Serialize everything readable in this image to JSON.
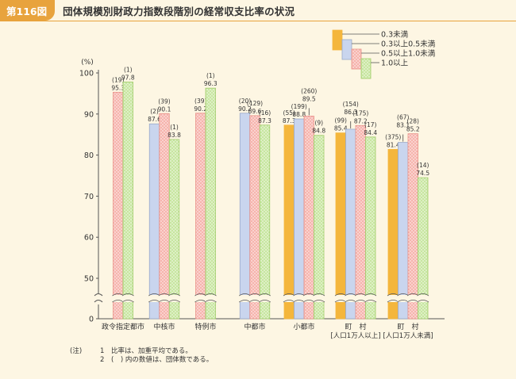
{
  "figure": {
    "badge": "第116図",
    "title": "団体規模別財政力指数段階別の経常収支比率の状況"
  },
  "notes": {
    "prefix": "(注)",
    "lines": [
      {
        "num": "1",
        "text": "比率は、加重平均である。"
      },
      {
        "num": "2",
        "text": "(　) 内の数値は、団体数である。"
      }
    ]
  },
  "colors": {
    "s0": "#f4b63c",
    "s1": "#c9d5ee",
    "s2": "#f6b4ad",
    "s3": "#c8e6a0"
  },
  "chart_data": {
    "type": "bar",
    "ylabel": "(%)",
    "yticks": [
      0,
      50,
      60,
      70,
      80,
      90,
      100
    ],
    "axis_break": true,
    "ylim": [
      45,
      100
    ],
    "legend_position": "top-right",
    "series": [
      {
        "name": "0.3未満"
      },
      {
        "name": "0.3以上0.5未満"
      },
      {
        "name": "0.5以上1.0未満"
      },
      {
        "name": "1.0以上"
      }
    ],
    "categories": [
      {
        "label": "政令指定都市",
        "label2": "",
        "bars": [
          {
            "s": 2,
            "value": 95.3,
            "count": "(19)"
          },
          {
            "s": 3,
            "value": 97.8,
            "count": "(1)"
          }
        ]
      },
      {
        "label": "中核市",
        "label2": "",
        "bars": [
          {
            "s": 1,
            "value": 87.6,
            "count": "(2)"
          },
          {
            "s": 2,
            "value": 90.1,
            "count": "(39)"
          },
          {
            "s": 3,
            "value": 83.8,
            "count": "(1)"
          }
        ]
      },
      {
        "label": "特例市",
        "label2": "",
        "bars": [
          {
            "s": 2,
            "value": 90.2,
            "count": "(39)"
          },
          {
            "s": 3,
            "value": 96.3,
            "count": "(1)"
          }
        ]
      },
      {
        "label": "中都市",
        "label2": "",
        "bars": [
          {
            "s": 1,
            "value": 90.2,
            "count": "(20)"
          },
          {
            "s": 2,
            "value": 89.6,
            "count": "(129)"
          },
          {
            "s": 3,
            "value": 87.3,
            "count": "(16)"
          }
        ]
      },
      {
        "label": "小都市",
        "label2": "",
        "bars": [
          {
            "s": 0,
            "value": 87.3,
            "count": "(55)"
          },
          {
            "s": 1,
            "value": 88.8,
            "count": "(199)"
          },
          {
            "s": 2,
            "value": 89.5,
            "count": "(260)"
          },
          {
            "s": 3,
            "value": 84.8,
            "count": "(9)"
          }
        ]
      },
      {
        "label": "町　村",
        "label2": "[人口1万人以上]",
        "bars": [
          {
            "s": 0,
            "value": 85.4,
            "count": "(99)"
          },
          {
            "s": 1,
            "value": 86.3,
            "count": "(154)"
          },
          {
            "s": 2,
            "value": 87.2,
            "count": "(175)"
          },
          {
            "s": 3,
            "value": 84.4,
            "count": "(17)"
          }
        ]
      },
      {
        "label": "町　村",
        "label2": "[人口1万人未満]",
        "bars": [
          {
            "s": 0,
            "value": 81.4,
            "count": "(375)"
          },
          {
            "s": 1,
            "value": 83.1,
            "count": "(67)"
          },
          {
            "s": 2,
            "value": 85.2,
            "count": "(28)"
          },
          {
            "s": 3,
            "value": 74.5,
            "count": "(14)"
          }
        ]
      }
    ]
  }
}
